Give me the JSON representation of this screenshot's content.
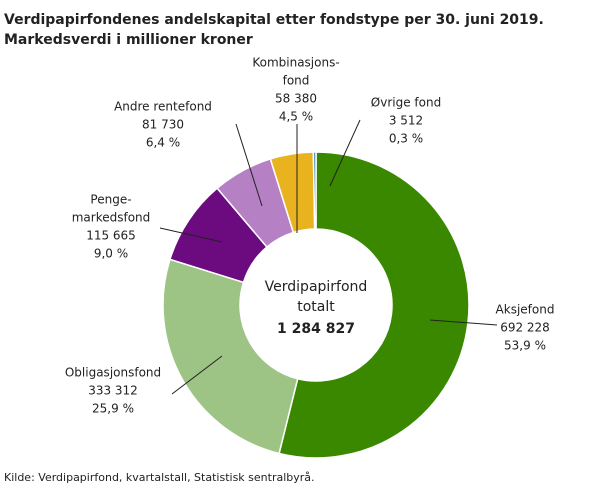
{
  "chart_data": {
    "type": "donut",
    "title": "Verdipapirfondenes andelskapital etter fondstype per 30. juni 2019.",
    "subtitle": "Markedsverdi i millioner kroner",
    "categories": [
      [
        "Aksjefond"
      ],
      [
        "Obligasjonsfond"
      ],
      [
        "Penge-",
        "markedsfond"
      ],
      [
        "Andre rentefond"
      ],
      [
        "Kombinasjons-",
        "fond"
      ],
      [
        "Øvrige fond"
      ]
    ],
    "values": [
      692228,
      333312,
      115665,
      81730,
      58380,
      3512
    ],
    "value_labels": [
      "692 228",
      "333 312",
      "115 665",
      "81 730",
      "58 380",
      "3 512"
    ],
    "shares": [
      53.9,
      25.9,
      9.0,
      6.4,
      4.5,
      0.3
    ],
    "share_labels": [
      "53,9 %",
      "25,9 %",
      "9,0 %",
      "6,4 %",
      "4,5 %",
      "0,3 %"
    ],
    "colors": [
      "#3a8800",
      "#9dc485",
      "#6c0a80",
      "#b680c4",
      "#e8b31f",
      "#2f7fc3"
    ],
    "center_lines": [
      "Verdipapirfond",
      "totalt"
    ],
    "total": 1284827,
    "total_label": "1 284 827",
    "source": "Kilde: Verdipapirfond, kvartalstall, Statistisk sentralbyrå."
  }
}
